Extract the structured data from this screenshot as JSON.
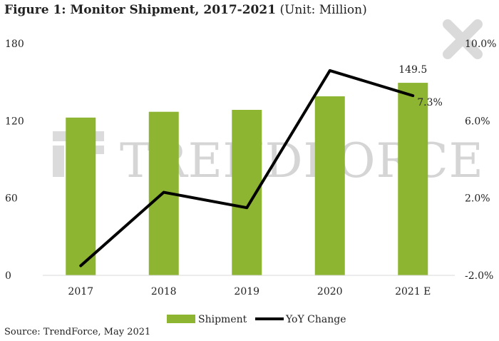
{
  "figure": {
    "title_bold": "Figure 1: Monitor Shipment, 2017-2021",
    "title_unit": "(Unit: Million)",
    "source": "Source: TrendForce, May 2021",
    "watermark": "TRENDFORCE"
  },
  "chart_data": {
    "type": "bar",
    "categories": [
      "2017",
      "2018",
      "2019",
      "2020",
      "2021 E"
    ],
    "series": [
      {
        "name": "Shipment",
        "type": "bar",
        "axis": "left",
        "color": "#8db531",
        "values": [
          122.5,
          127,
          128.5,
          139,
          149.5
        ]
      },
      {
        "name": "YoY Change",
        "type": "line",
        "axis": "right",
        "color": "#000000",
        "values": [
          -1.5,
          2.3,
          1.5,
          8.6,
          7.3
        ]
      }
    ],
    "y_left": {
      "ylim": [
        0,
        180
      ],
      "ticks": [
        "0",
        "60",
        "120",
        "180"
      ]
    },
    "y_right": {
      "ylim": [
        -2.0,
        10.0
      ],
      "ticks": [
        "-2.0%",
        "2.0%",
        "6.0%",
        "10.0%"
      ],
      "tick_values": [
        -2,
        2,
        6,
        10
      ]
    },
    "data_labels": {
      "bar_2021": "149.5",
      "line_2021": "7.3%"
    },
    "legend": {
      "position": "bottom"
    },
    "grid": false
  }
}
